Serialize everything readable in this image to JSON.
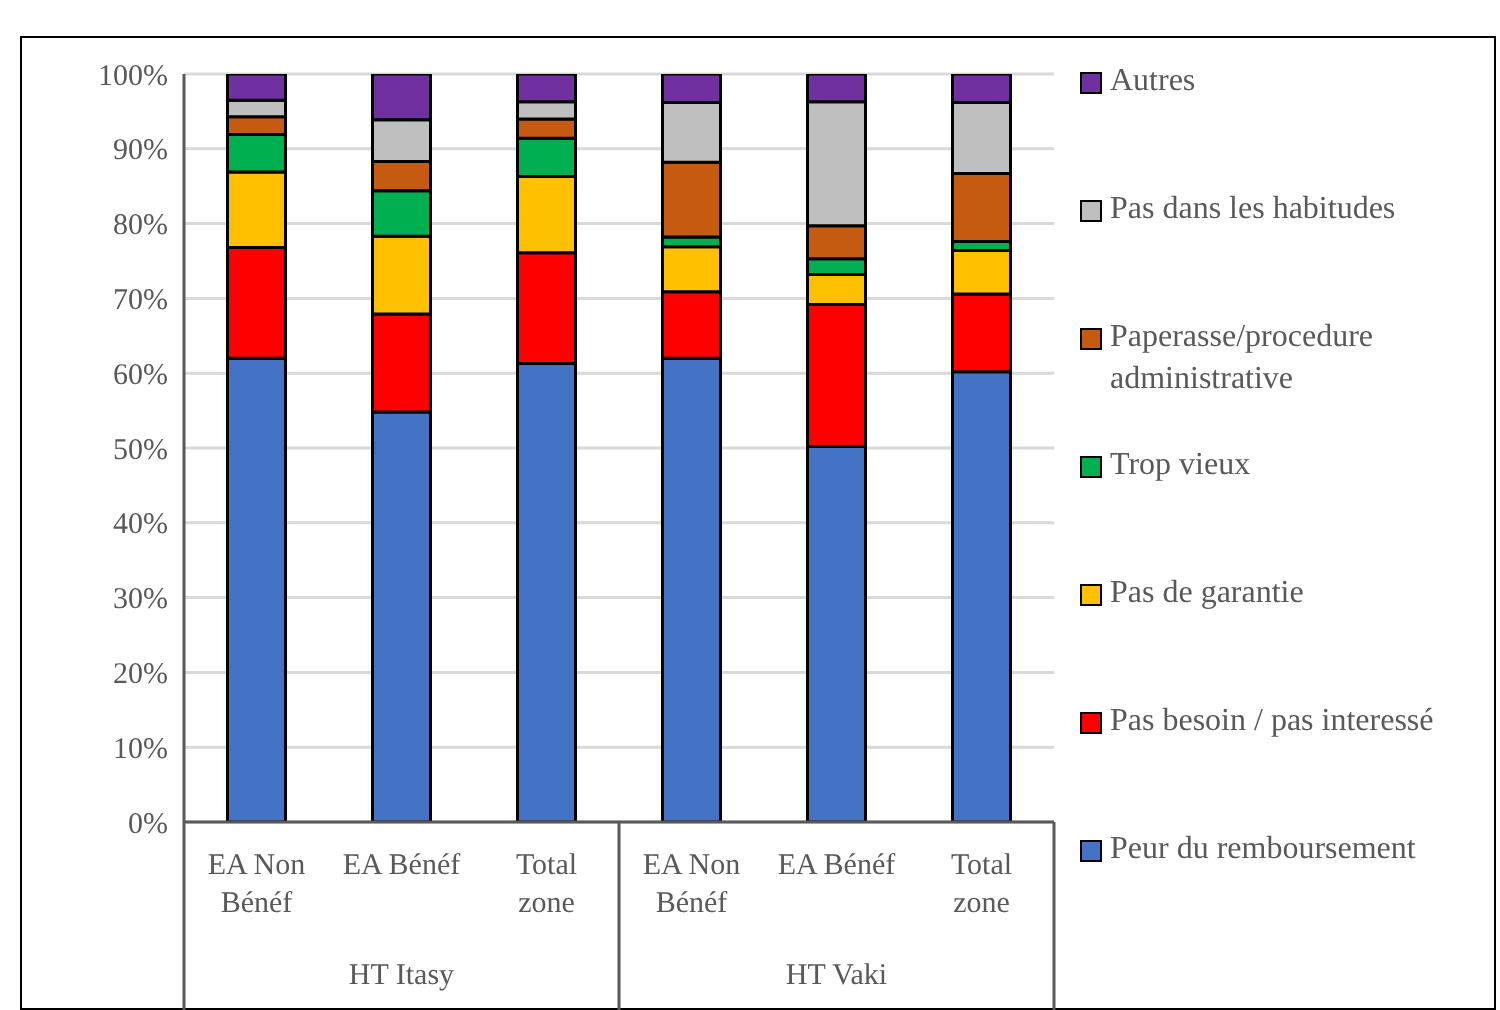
{
  "chart_data": {
    "type": "bar",
    "stacked": true,
    "categories": [
      "EA Non Bénéf",
      "EA Bénéf",
      "Total zone",
      "EA Non Bénéf",
      "EA Bénéf",
      "Total zone"
    ],
    "series": [
      {
        "name": "Peur du remboursement",
        "color": "#4472c4",
        "values": [
          62,
          54.8,
          61.3,
          62,
          50.2,
          60.2
        ]
      },
      {
        "name": "Pas besoin / pas interessé",
        "color": "#ff0000",
        "values": [
          14.8,
          13.1,
          14.8,
          8.9,
          19,
          10.4
        ]
      },
      {
        "name": "Pas de garantie",
        "color": "#ffc000",
        "values": [
          10.1,
          10.4,
          10.2,
          6,
          4,
          5.8
        ]
      },
      {
        "name": "Trop vieux",
        "color": "#00b050",
        "values": [
          5,
          6.1,
          5.1,
          1.3,
          2.1,
          1.2
        ]
      },
      {
        "name": "Paperasse/procedure administrative",
        "color": "#c55a11",
        "values": [
          2.4,
          3.9,
          2.6,
          10,
          4.4,
          9.1
        ]
      },
      {
        "name": "Pas dans les habitudes",
        "color": "#bfbfbf",
        "values": [
          2.2,
          5.6,
          2.3,
          8,
          16.6,
          9.5
        ]
      },
      {
        "name": "Autres",
        "color": "#7030a0",
        "values": [
          3.5,
          6.1,
          3.7,
          3.8,
          3.7,
          3.8
        ]
      }
    ],
    "ylim": [
      0,
      100
    ],
    "yticks": [
      {
        "value": 0,
        "label": "0%"
      },
      {
        "value": 10,
        "label": "10%"
      },
      {
        "value": 20,
        "label": "20%"
      },
      {
        "value": 30,
        "label": "30%"
      },
      {
        "value": 40,
        "label": "40%"
      },
      {
        "value": 50,
        "label": "50%"
      },
      {
        "value": 60,
        "label": "60%"
      },
      {
        "value": 70,
        "label": "70%"
      },
      {
        "value": 80,
        "label": "80%"
      },
      {
        "value": 90,
        "label": "90%"
      },
      {
        "value": 100,
        "label": "100%"
      }
    ],
    "grid": "y",
    "legend": "right",
    "annotations": [
      "HT Itasy",
      "HT Vaki"
    ]
  }
}
